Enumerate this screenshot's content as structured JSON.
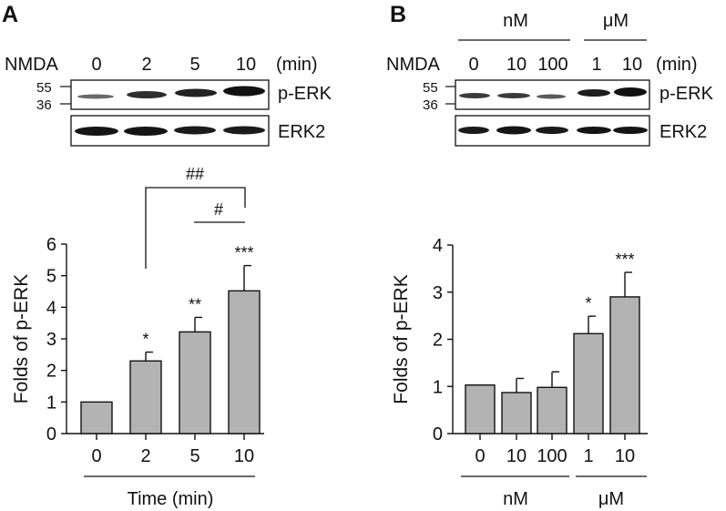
{
  "panel_a": {
    "letter": "A",
    "blot": {
      "treatment_label": "NMDA",
      "lanes": [
        "0",
        "2",
        "5",
        "10"
      ],
      "unit": "(min)",
      "markers": [
        "55",
        "36"
      ],
      "band_pERK": "p-ERK",
      "band_ERK2": "ERK2"
    },
    "brackets": [
      {
        "label": "##",
        "from": "2",
        "to": "10"
      },
      {
        "label": "#",
        "from": "5",
        "to": "10"
      }
    ],
    "group_label": "Time (min)"
  },
  "panel_b": {
    "letter": "B",
    "blot": {
      "treatment_label": "NMDA",
      "lanes": [
        "0",
        "10",
        "100",
        "1",
        "10"
      ],
      "unit": "(min)",
      "group_nM": "nM",
      "group_uM": "μM",
      "markers": [
        "55",
        "36"
      ],
      "band_pERK": "p-ERK",
      "band_ERK2": "ERK2"
    },
    "group_nM": "nM",
    "group_uM": "μM"
  },
  "chart_data": [
    {
      "type": "bar",
      "panel": "A",
      "categories": [
        "0",
        "2",
        "5",
        "10"
      ],
      "values": [
        1.0,
        2.3,
        3.22,
        4.52
      ],
      "errors": [
        0,
        0.28,
        0.46,
        0.8
      ],
      "significance": [
        "",
        "*",
        "**",
        "***"
      ],
      "xlabel": "Time (min)",
      "ylabel": "Folds of p-ERK",
      "ylim": [
        0,
        6
      ],
      "yticks": [
        "0",
        "1",
        "2",
        "3",
        "4",
        "5",
        "6"
      ],
      "bar_color": "#b3b3b3"
    },
    {
      "type": "bar",
      "panel": "B",
      "categories": [
        "0",
        "10",
        "100",
        "1",
        "10"
      ],
      "values": [
        1.03,
        0.87,
        0.98,
        2.12,
        2.9
      ],
      "errors": [
        0,
        0.3,
        0.33,
        0.37,
        0.52
      ],
      "significance": [
        "",
        "",
        "",
        "*",
        "***"
      ],
      "xlabel": "",
      "ylabel": "Folds of p-ERK",
      "ylim": [
        0,
        4
      ],
      "yticks": [
        "0",
        "1",
        "2",
        "3",
        "4"
      ],
      "bar_color": "#b3b3b3"
    }
  ]
}
